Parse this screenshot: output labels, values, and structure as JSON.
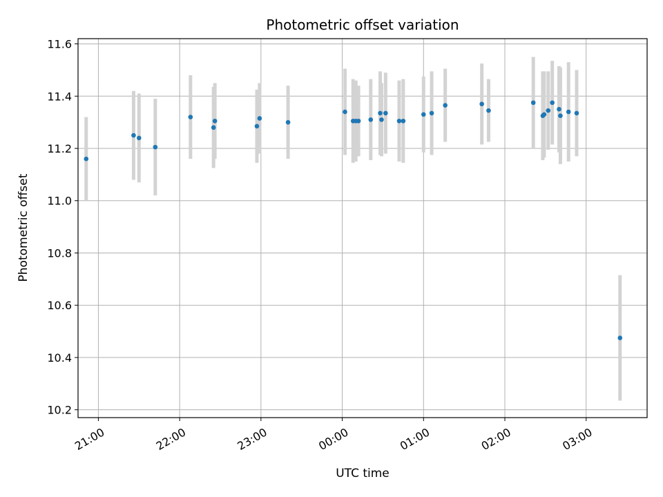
{
  "chart_data": {
    "type": "scatter",
    "title": "Photometric offset variation",
    "xlabel": "UTC time",
    "ylabel": "Photometric offset",
    "xlim": [
      "20:45",
      "03:45"
    ],
    "ylim": [
      10.17,
      11.62
    ],
    "x_ticks": [
      "21:00",
      "22:00",
      "23:00",
      "00:00",
      "01:00",
      "02:00",
      "03:00"
    ],
    "y_ticks": [
      10.2,
      10.4,
      10.6,
      10.8,
      11.0,
      11.2,
      11.4,
      11.6
    ],
    "y_tick_labels": [
      "10.2",
      "10.4",
      "10.6",
      "10.8",
      "11.0",
      "11.2",
      "11.4",
      "11.6"
    ],
    "grid": true,
    "colors": {
      "point": "#1f77b4",
      "errorbar": "#d3d3d3",
      "grid": "#b0b0b0"
    },
    "points": [
      {
        "t": "20:51",
        "y": 11.16,
        "err": 0.16
      },
      {
        "t": "21:26",
        "y": 11.25,
        "err": 0.17
      },
      {
        "t": "21:30",
        "y": 11.24,
        "err": 0.17
      },
      {
        "t": "21:42",
        "y": 11.205,
        "err": 0.185
      },
      {
        "t": "22:08",
        "y": 11.32,
        "err": 0.16
      },
      {
        "t": "22:25",
        "y": 11.28,
        "err": 0.155
      },
      {
        "t": "22:26",
        "y": 11.305,
        "err": 0.145
      },
      {
        "t": "22:57",
        "y": 11.285,
        "err": 0.14
      },
      {
        "t": "22:59",
        "y": 11.315,
        "err": 0.135
      },
      {
        "t": "23:20",
        "y": 11.3,
        "err": 0.14
      },
      {
        "t": "00:02",
        "y": 11.34,
        "err": 0.165
      },
      {
        "t": "00:08",
        "y": 11.305,
        "err": 0.16
      },
      {
        "t": "00:10",
        "y": 11.305,
        "err": 0.155
      },
      {
        "t": "00:12",
        "y": 11.305,
        "err": 0.135
      },
      {
        "t": "00:21",
        "y": 11.31,
        "err": 0.155
      },
      {
        "t": "00:28",
        "y": 11.335,
        "err": 0.16
      },
      {
        "t": "00:29",
        "y": 11.31,
        "err": 0.14
      },
      {
        "t": "00:32",
        "y": 11.335,
        "err": 0.155
      },
      {
        "t": "00:42",
        "y": 11.305,
        "err": 0.155
      },
      {
        "t": "00:45",
        "y": 11.305,
        "err": 0.16
      },
      {
        "t": "01:00",
        "y": 11.33,
        "err": 0.145
      },
      {
        "t": "01:06",
        "y": 11.335,
        "err": 0.16
      },
      {
        "t": "01:16",
        "y": 11.365,
        "err": 0.14
      },
      {
        "t": "01:43",
        "y": 11.37,
        "err": 0.155
      },
      {
        "t": "01:48",
        "y": 11.345,
        "err": 0.12
      },
      {
        "t": "02:21",
        "y": 11.375,
        "err": 0.175
      },
      {
        "t": "02:28",
        "y": 11.325,
        "err": 0.17
      },
      {
        "t": "02:29",
        "y": 11.33,
        "err": 0.165
      },
      {
        "t": "02:32",
        "y": 11.345,
        "err": 0.15
      },
      {
        "t": "02:35",
        "y": 11.375,
        "err": 0.16
      },
      {
        "t": "02:40",
        "y": 11.35,
        "err": 0.165
      },
      {
        "t": "02:41",
        "y": 11.325,
        "err": 0.185
      },
      {
        "t": "02:47",
        "y": 11.34,
        "err": 0.19
      },
      {
        "t": "02:53",
        "y": 11.335,
        "err": 0.165
      },
      {
        "t": "03:25",
        "y": 10.475,
        "err": 0.24
      }
    ]
  }
}
